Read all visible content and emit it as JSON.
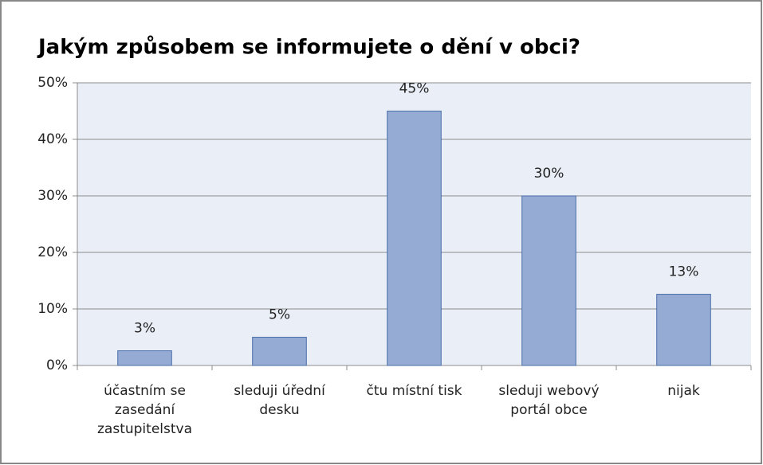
{
  "chart_data": {
    "type": "bar",
    "title": "Jakým způsobem se informujete o dění v obci?",
    "categories": [
      "účastním se zasedání zastupitelstva",
      "sleduji úřední desku",
      "čtu místní tisk",
      "sleduji webový portál obce",
      "nijak"
    ],
    "values": [
      2.6,
      5,
      45,
      30,
      12.6
    ],
    "value_labels": [
      "3%",
      "5%",
      "45%",
      "30%",
      "13%"
    ],
    "color": "#95abd4",
    "ylim": [
      0,
      50
    ],
    "yticks": [
      {
        "value": 0,
        "label": "0%"
      },
      {
        "value": 10,
        "label": "10%"
      },
      {
        "value": 20,
        "label": "20%"
      },
      {
        "value": 30,
        "label": "30%"
      },
      {
        "value": 40,
        "label": "40%"
      },
      {
        "value": 50,
        "label": "50%"
      }
    ],
    "grid": true
  }
}
